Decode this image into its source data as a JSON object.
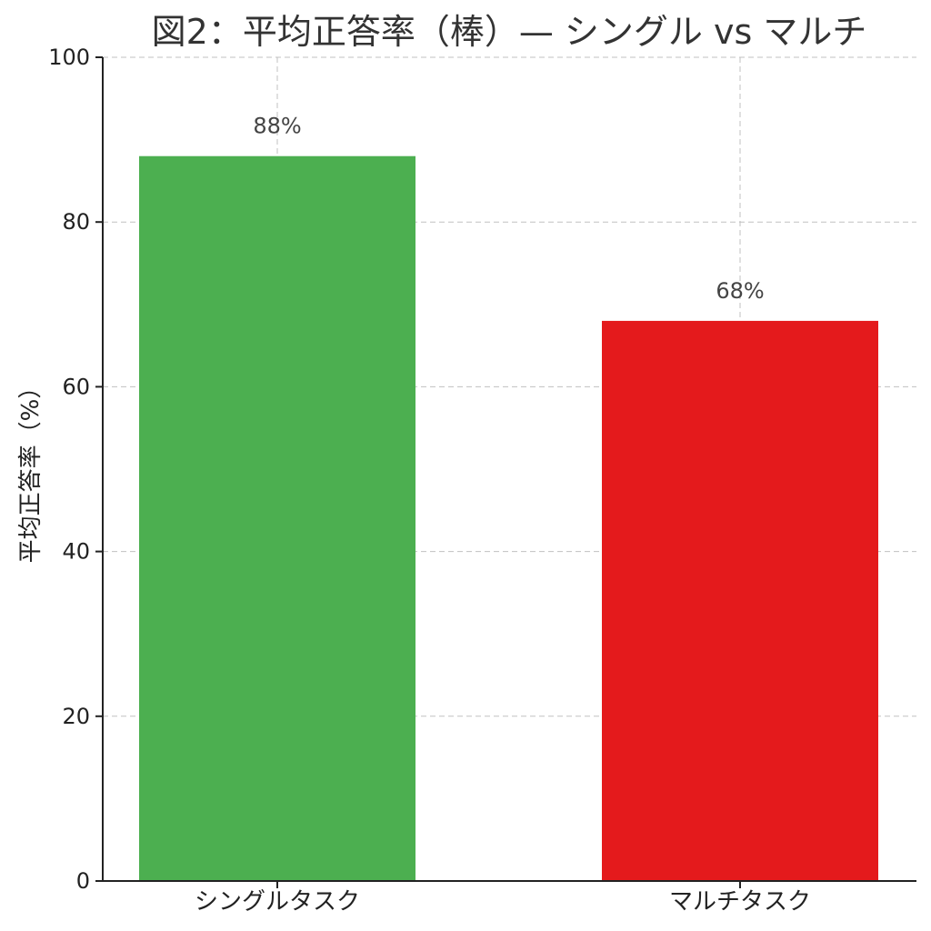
{
  "chart_data": {
    "type": "bar",
    "title": "図2：平均正答率（棒）— シングル vs マルチ",
    "xlabel": "",
    "ylabel": "平均正答率（%）",
    "categories": [
      "シングルタスク",
      "マルチタスク"
    ],
    "values": [
      88,
      68
    ],
    "data_labels": [
      "88%",
      "68%"
    ],
    "ylim": [
      0,
      100
    ],
    "yticks": [
      0,
      20,
      40,
      60,
      80,
      100
    ],
    "grid": true,
    "colors": [
      "#4caf50",
      "#e41a1c"
    ]
  }
}
